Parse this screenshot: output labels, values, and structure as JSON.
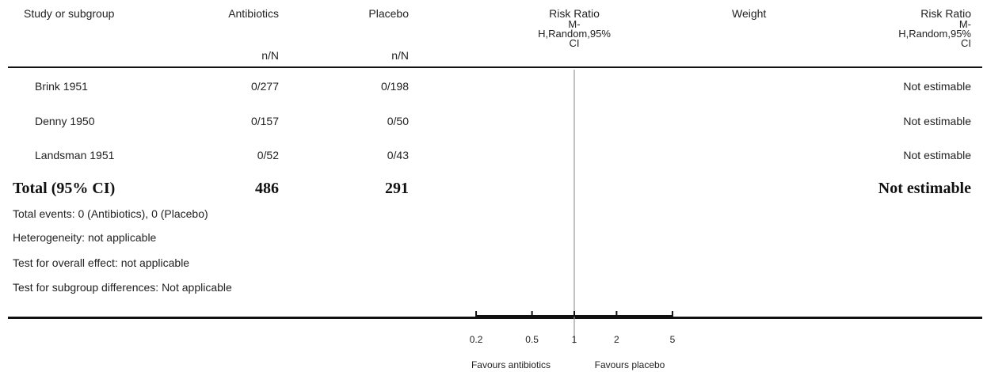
{
  "header": {
    "study": "Study or subgroup",
    "antibiotics": "Antibiotics",
    "placebo": "Placebo",
    "rr_label": "Risk Ratio",
    "rr_method_1": "M-",
    "rr_method_2": "H,Random,95%",
    "rr_method_3": "CI",
    "weight": "Weight",
    "rr2_label": "Risk Ratio",
    "rr2_method_1": "M-",
    "rr2_method_2": "H,Random,95%",
    "rr2_method_3": "CI",
    "antibiotics_sub": "n/N",
    "placebo_sub": "n/N"
  },
  "footer_notes": {
    "events": "Total events: 0 (Antibiotics), 0 (Placebo)",
    "heterogeneity": "Heterogeneity: not applicable",
    "overall": "Test for overall effect: not applicable",
    "subgroup": "Test for subgroup differences: Not applicable"
  },
  "chart_data": {
    "type": "table",
    "rows": [
      {
        "study": "Brink 1951",
        "antibiotics": "0/277",
        "placebo": "0/198",
        "weight": "",
        "rr": "Not estimable"
      },
      {
        "study": "Denny 1950",
        "antibiotics": "0/157",
        "placebo": "0/50",
        "weight": "",
        "rr": "Not estimable"
      },
      {
        "study": "Landsman 1951",
        "antibiotics": "0/52",
        "placebo": "0/43",
        "weight": "",
        "rr": "Not estimable"
      }
    ],
    "total": {
      "label": "Total (95% CI)",
      "antibiotics": "486",
      "placebo": "291",
      "rr": "Not estimable"
    },
    "axis": {
      "scale": "log",
      "ticks": [
        0.2,
        0.5,
        1,
        2,
        5
      ],
      "tick_labels": [
        "0.2",
        "0.5",
        "1",
        "2",
        "5"
      ],
      "null_line": 1,
      "favours_left": "Favours antibiotics",
      "favours_right": "Favours placebo"
    }
  }
}
